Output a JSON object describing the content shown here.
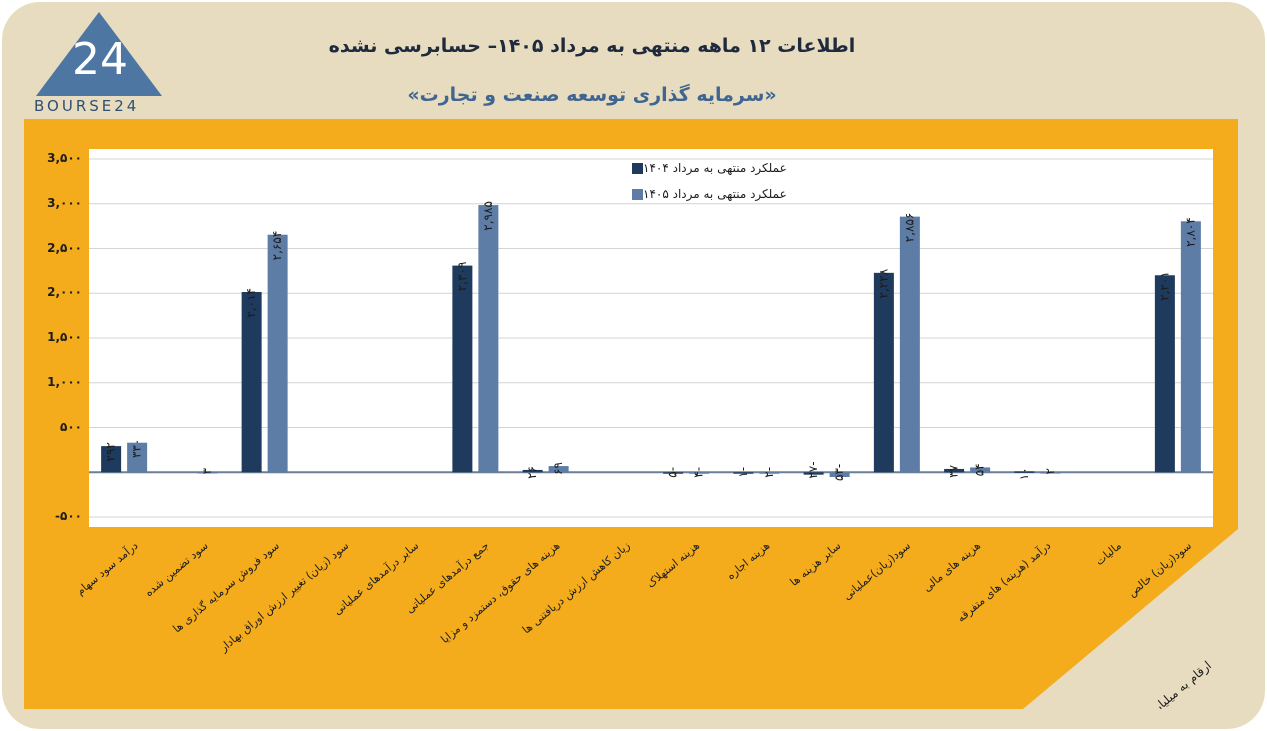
{
  "header": {
    "logo_text": "BOURSE24",
    "logo_number": "24",
    "title": "اطلاعات ۱۲ ماهه منتهی به مرداد ۱۴۰۵– حسابرسی نشده",
    "subtitle": "«سرمایه گذاری توسعه صنعت و تجارت»"
  },
  "unit_note": "ارقام به میلیارد تومان",
  "colors": {
    "series_1404": "#1e3a5c",
    "series_1405": "#5d7da6",
    "panel": "#f4ac1c",
    "card": "#e8dcc0"
  },
  "chart_data": {
    "type": "bar",
    "categories": [
      "درآمد سود سهام",
      "سود تضمین شده",
      "سود فروش سرمایه گذاری ها",
      "سود (زیان) تغییر ارزش اوراق بهادار",
      "سایر درآمدهای عملیاتی",
      "جمع درآمدهای عملیاتی",
      "هزینه های حقوق، دستمزد و مزایا",
      "زیان کاهش ارزش دریافتنی ها",
      "هزینه استهلاک",
      "هزینه اجاره",
      "سایر هزینه ها",
      "سود(زیان)عملیاتی",
      "هزینه های مالی",
      "درآمد (هزینه) های متفرقه",
      "مالیات",
      "سود(زیان) خالص"
    ],
    "series": [
      {
        "name": "عملکرد منتهی به مرداد ۱۴۰۴",
        "values": [
          292,
          0,
          2014,
          0,
          0,
          2309,
          26,
          0,
          -5,
          -1,
          -27,
          2228,
          37,
          10,
          0,
          2201
        ],
        "labels": [
          "۲۹۲",
          "",
          "۲,۰۱۴",
          "",
          "",
          "۲,۳۰۹",
          "۲۶",
          "",
          "-۵",
          "-۱",
          "-۲۷",
          "۲,۲۲۸",
          "۳۷",
          "۱۰",
          "",
          "۲,۲۰۱"
        ]
      },
      {
        "name": "عملکرد منتهی به مرداد ۱۴۰۵",
        "values": [
          330,
          3,
          2654,
          0,
          0,
          2985,
          69,
          0,
          -4,
          -2,
          -53,
          2856,
          54,
          2,
          0,
          2804
        ],
        "labels": [
          "۳۳۰",
          "۳",
          "۲,۶۵۴",
          "",
          "",
          "۲,۹۸۵",
          "۶۹",
          "",
          "-۴",
          "-۲",
          "-۵۳",
          "۲,۸۵۶",
          "۵۴",
          "۲",
          "",
          "۲,۸۰۴"
        ]
      }
    ],
    "ylim": [
      -500,
      3500
    ],
    "yticks": [
      -500,
      0,
      500,
      1000,
      1500,
      2000,
      2500,
      3000,
      3500
    ],
    "ytick_labels": [
      "-۵۰۰",
      "",
      "۵۰۰",
      "1,۰۰۰",
      "1,۵۰۰",
      "2,۰۰۰",
      "2,۵۰۰",
      "3,۰۰۰",
      "3,۵۰۰"
    ],
    "grid": true,
    "legend_position": "top-center"
  }
}
